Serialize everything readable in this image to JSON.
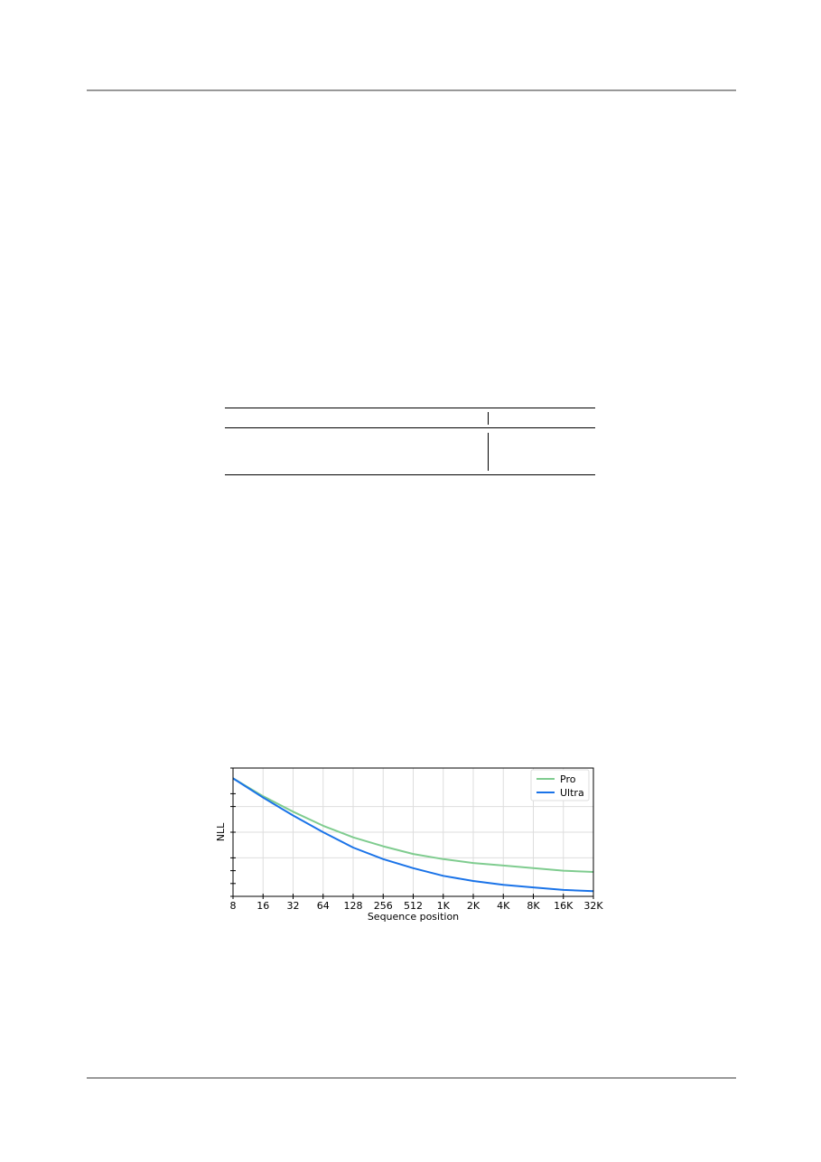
{
  "chart_data": {
    "type": "line",
    "xlabel": "Sequence position",
    "ylabel": "NLL",
    "x_scale": "log2",
    "x_ticks": [
      "8",
      "16",
      "32",
      "64",
      "128",
      "256",
      "512",
      "1K",
      "2K",
      "4K",
      "8K",
      "16K",
      "32K"
    ],
    "x_tick_values": [
      8,
      16,
      32,
      64,
      128,
      256,
      512,
      1024,
      2048,
      4096,
      8192,
      16384,
      32768
    ],
    "xlim": [
      8,
      32768
    ],
    "grid": true,
    "legend_position": "top-right",
    "series": [
      {
        "name": "Pro",
        "color": "#7fcc8f",
        "points": [
          [
            8,
            0.92
          ],
          [
            16,
            0.78
          ],
          [
            32,
            0.66
          ],
          [
            64,
            0.55
          ],
          [
            128,
            0.46
          ],
          [
            256,
            0.39
          ],
          [
            512,
            0.33
          ],
          [
            1024,
            0.29
          ],
          [
            2048,
            0.26
          ],
          [
            4096,
            0.24
          ],
          [
            8192,
            0.22
          ],
          [
            16384,
            0.2
          ],
          [
            32768,
            0.19
          ]
        ]
      },
      {
        "name": "Ultra",
        "color": "#1a73e8",
        "points": [
          [
            8,
            0.92
          ],
          [
            16,
            0.77
          ],
          [
            32,
            0.63
          ],
          [
            64,
            0.5
          ],
          [
            128,
            0.38
          ],
          [
            256,
            0.29
          ],
          [
            512,
            0.22
          ],
          [
            1024,
            0.16
          ],
          [
            2048,
            0.12
          ],
          [
            4096,
            0.09
          ],
          [
            8192,
            0.07
          ],
          [
            16384,
            0.05
          ],
          [
            32768,
            0.04
          ]
        ]
      }
    ]
  }
}
